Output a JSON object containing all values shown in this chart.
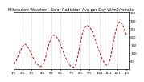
{
  "title": "Milwaukee Weather - Solar Radiation Avg per Day W/m2/minute",
  "line_color": "#cc0000",
  "background_color": "#ffffff",
  "plot_bg_color": "#ffffff",
  "grid_color": "#999999",
  "ylim": [
    0,
    350
  ],
  "xlim": [
    0,
    52
  ],
  "y_ticks": [
    50,
    100,
    150,
    200,
    250,
    300,
    350
  ],
  "values": [
    30,
    45,
    80,
    110,
    140,
    155,
    145,
    120,
    95,
    65,
    40,
    25,
    15,
    20,
    50,
    100,
    155,
    195,
    210,
    205,
    185,
    155,
    120,
    85,
    55,
    30,
    15,
    10,
    25,
    80,
    155,
    215,
    255,
    270,
    265,
    245,
    215,
    175,
    135,
    95,
    62,
    38,
    22,
    30,
    85,
    165,
    230,
    275,
    295,
    280,
    248,
    210
  ],
  "x_tick_labels": [
    "1/1",
    "2/1",
    "3/1",
    "4/1",
    "5/1",
    "6/1",
    "7/1",
    "8/1",
    "9/1",
    "10/1",
    "11/1",
    "12/1",
    "1/1"
  ],
  "x_tick_positions": [
    0,
    4,
    8,
    13,
    17,
    21,
    26,
    30,
    34,
    39,
    43,
    47,
    51
  ],
  "vgrid_positions": [
    4,
    8,
    13,
    17,
    21,
    26,
    30,
    34,
    39,
    43,
    47
  ],
  "title_fontsize": 3.5,
  "tick_fontsize": 2.8,
  "linewidth": 0.7
}
